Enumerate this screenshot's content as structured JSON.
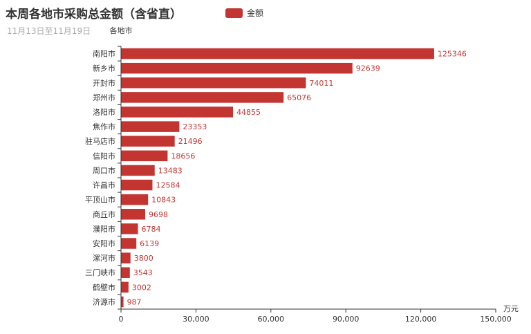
{
  "chart_data": {
    "type": "bar",
    "orientation": "horizontal",
    "title": "本周各地市采购总金额（含省直）",
    "subtitle": "11月13日至11月19日",
    "legend": [
      "金额"
    ],
    "ylabel": "各地市",
    "xlabel": "万元",
    "categories": [
      "南阳市",
      "新乡市",
      "开封市",
      "郑州市",
      "洛阳市",
      "焦作市",
      "驻马店市",
      "信阳市",
      "周口市",
      "许昌市",
      "平顶山市",
      "商丘市",
      "濮阳市",
      "安阳市",
      "漯河市",
      "三门峡市",
      "鹤壁市",
      "济源市"
    ],
    "series": [
      {
        "name": "金额",
        "values": [
          125346,
          92639,
          74011,
          65076,
          44855,
          23353,
          21496,
          18656,
          13483,
          12584,
          10843,
          9698,
          6784,
          6139,
          3800,
          3543,
          3002,
          987
        ]
      }
    ],
    "xlim": [
      0,
      150000
    ],
    "xticks": [
      "0",
      "30,000",
      "60,000",
      "90,000",
      "120,000",
      "150,000"
    ],
    "grid": false,
    "legend_position": "top-center",
    "colors": {
      "bar": "#c23531",
      "axis": "#333333",
      "title": "#333333",
      "subtitle": "#aaaaaa"
    }
  }
}
